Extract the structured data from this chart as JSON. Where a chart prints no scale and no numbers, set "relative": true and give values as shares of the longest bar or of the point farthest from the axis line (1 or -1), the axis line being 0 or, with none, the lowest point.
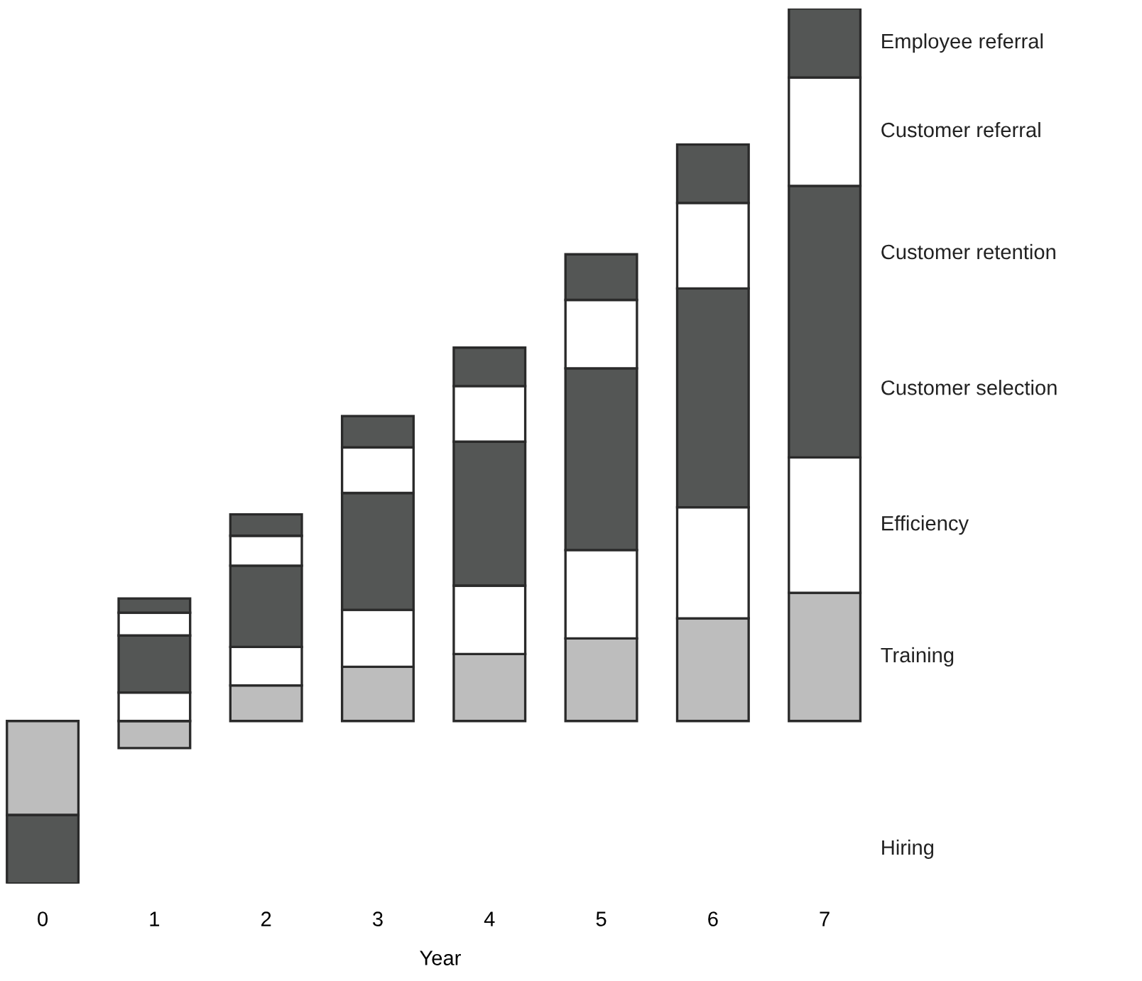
{
  "chart_data": {
    "type": "bar",
    "stacked": true,
    "relative": true,
    "xlabel": "Year",
    "categories": [
      "0",
      "1",
      "2",
      "3",
      "4",
      "5",
      "6",
      "7"
    ],
    "series": [
      {
        "name": "Training",
        "color": "#bdbdbd",
        "values": [
          -0.132,
          -0.038,
          0.05,
          0.076,
          0.094,
          0.116,
          0.144,
          0.18
        ]
      },
      {
        "name": "Hiring",
        "color": "#545655",
        "values": [
          -0.096,
          null,
          null,
          null,
          null,
          null,
          null,
          null
        ]
      },
      {
        "name": "Efficiency",
        "color": "#ffffff",
        "values": [
          null,
          0.04,
          0.054,
          0.08,
          0.096,
          0.124,
          0.156,
          0.19
        ]
      },
      {
        "color": "#545655",
        "values": [
          null,
          0.08,
          0.114,
          0.164,
          0.202,
          0.255,
          0.307,
          0.381
        ]
      },
      {
        "name": "Customer referral",
        "color": "#ffffff",
        "values": [
          null,
          0.032,
          0.042,
          0.064,
          0.078,
          0.096,
          0.12,
          0.152
        ]
      },
      {
        "name": "Employee referral",
        "color": "#545655",
        "values": [
          null,
          0.02,
          0.03,
          0.044,
          0.054,
          0.064,
          0.082,
          0.097
        ]
      }
    ],
    "annotations": [
      "Customer retention",
      "Customer selection"
    ],
    "legend": false,
    "grid": false
  }
}
